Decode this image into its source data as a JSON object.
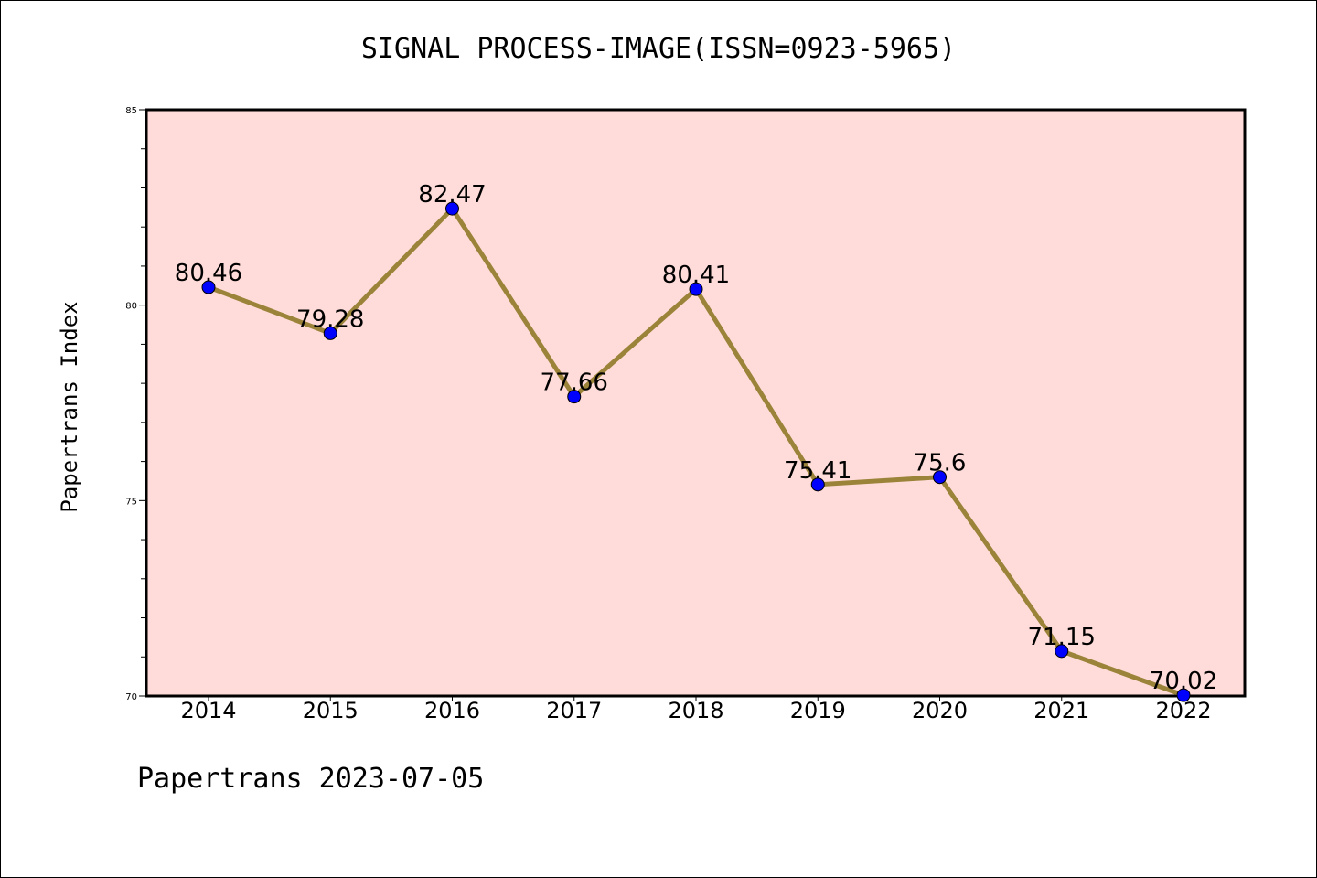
{
  "chart_data": {
    "type": "line",
    "title": "SIGNAL PROCESS-IMAGE(ISSN=0923-5965)",
    "ylabel": "Papertrans Index",
    "xlabel": "",
    "footer": "Papertrans 2023-07-05",
    "categories": [
      "2014",
      "2015",
      "2016",
      "2017",
      "2018",
      "2019",
      "2020",
      "2021",
      "2022"
    ],
    "values": [
      80.46,
      79.28,
      82.47,
      77.66,
      80.41,
      75.41,
      75.6,
      71.15,
      70.02
    ],
    "data_labels": [
      "80.46",
      "79.28",
      "82.47",
      "77.66",
      "80.41",
      "75.41",
      "75.6",
      "71.15",
      "70.02"
    ],
    "ylim": [
      70,
      85
    ],
    "yticks": [
      "70",
      "75",
      "80",
      "85"
    ],
    "grid": false,
    "colors": {
      "plot_background": "#ffdcd9",
      "line": "#9b833a",
      "marker": "#0000ff"
    }
  }
}
